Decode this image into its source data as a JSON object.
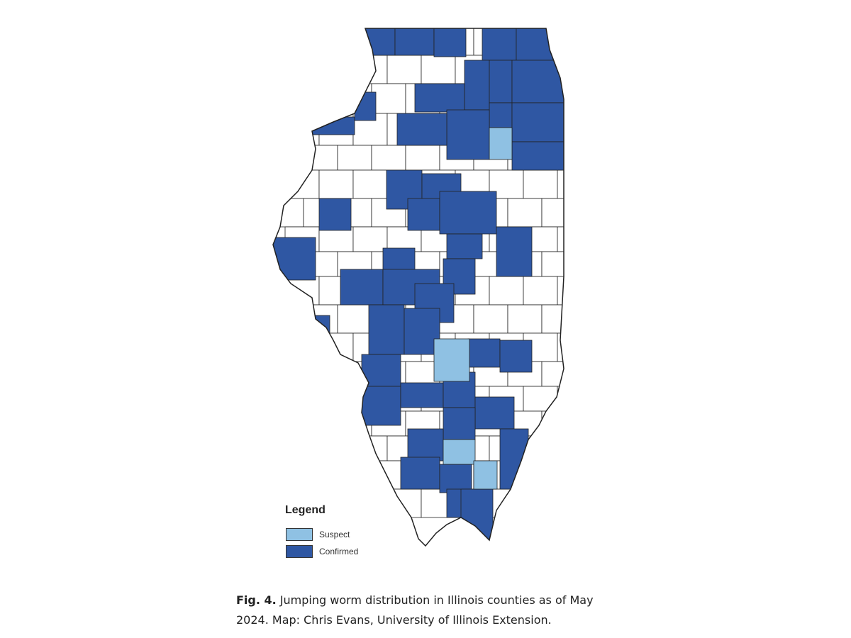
{
  "colors": {
    "confirmed": "#2f57a3",
    "suspect": "#8fc1e3",
    "none": "#ffffff",
    "border": "#222222"
  },
  "legend": {
    "title": "Legend",
    "items": [
      {
        "label": "Suspect",
        "status": "suspect"
      },
      {
        "label": "Confirmed",
        "status": "confirmed"
      }
    ]
  },
  "caption": {
    "label": "Fig. 4.",
    "text": " Jumping worm distribution in Illinois counties as of May 2024. Map: Chris Evans, University of Illinois Extension."
  }
}
